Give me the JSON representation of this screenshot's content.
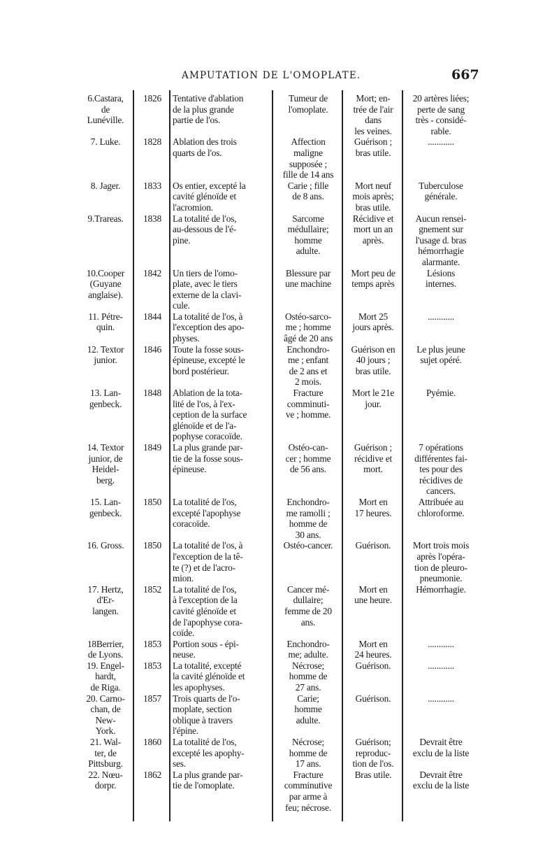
{
  "header": {
    "title": "AMPUTATION DE L'OMOPLATE.",
    "page_number": "667"
  },
  "rows": [
    {
      "case": "6.Castara,\nde\nLunéville.",
      "year": "1826",
      "operation": "Tentative d'ablation\n   de la plus grande\n   partie de l'os.",
      "cause": "Tumeur de\nl'omoplate.",
      "result": "Mort; en-\ntrée de l'air\ndans\nles veines.",
      "remarks": "20 artères liées;\nperte de sang\ntrès - considé-\nrable."
    },
    {
      "case": "7. Luke.",
      "year": "1828",
      "operation": "Ablation des trois\n   quarts de l'os.",
      "cause": "Affection\nmaligne\nsupposée ;\nfille de 14 ans",
      "result": "Guérison ;\nbras utile.",
      "remarks": "............"
    },
    {
      "case": "8. Jager.",
      "year": "1833",
      "operation": "Os entier, excepté la\n   cavité glénoïde et\n   l'acromion.",
      "cause": "Carie ; fille\nde 8 ans.",
      "result": "Mort neuf\nmois après;\nbras utile.",
      "remarks": "Tuberculose\ngénérale."
    },
    {
      "case": "9.Trareas.",
      "year": "1838",
      "operation": "La totalité de l'os,\n   au-dessous de l'é-\n   pine.",
      "cause": "Sarcome\nmédullaire;\nhomme\nadulte.",
      "result": "Récidive et\nmort un an\naprès.",
      "remarks": "Aucun rensei-\ngnement sur\nl'usage d. bras\nhémorrhagie\nalarmante."
    },
    {
      "case": "10.Cooper\n(Guyane\nanglaise).",
      "year": "1842",
      "operation": "Un tiers de l'omo-\n   plate, avec le tiers\n   externe de la clavi-\n   cule.",
      "cause": "Blessure par\nune machine",
      "result": "Mort peu de\ntemps après",
      "remarks": "Lésions\ninternes."
    },
    {
      "case": "11. Pétre-\nquin.",
      "year": "1844",
      "operation": "La totalité de l'os, à\n   l'exception des apo-\n   physes.",
      "cause": "Ostéo-sarco-\nme ; homme\nâgé de 20 ans",
      "result": "Mort 25\njours après.",
      "remarks": "............"
    },
    {
      "case": "12. Textor\njunior.",
      "year": "1846",
      "operation": "Toute la fosse sous-\n   épineuse, excepté le\n   bord postérieur.",
      "cause": "Enchondro-\nme ; enfant\nde 2 ans et\n2 mois.",
      "result": "Guérison en\n40 jours ;\nbras utile.",
      "remarks": "Le plus jeune\nsujet opéré."
    },
    {
      "case": "13. Lan-\ngenbeck.",
      "year": "1848",
      "operation": "Ablation de la tota-\n   lité de l'os, à l'ex-\n   ception de la surface\n   glénoïde et de l'a-\n   pophyse coracoïde.",
      "cause": "Fracture\ncomminuti-\nve ; homme.",
      "result": "Mort le 21e\njour.",
      "remarks": "Pyémie."
    },
    {
      "case": "14. Textor\njunior, de\nHeidel-\nberg.",
      "year": "1849",
      "operation": "La plus grande par-\n   tie de la fosse sous-\n   épineuse.",
      "cause": "Ostéo-can-\ncer ; homme\nde 56 ans.",
      "result": "Guérison ;\nrécidive et\nmort.",
      "remarks": "7 opérations\ndifférentes fai-\ntes pour des\nrécidives de\ncancers."
    },
    {
      "case": "15. Lan-\ngenbeck.",
      "year": "1850",
      "operation": "La totalité de l'os,\n   excepté l'apophyse\n   coracoïde.",
      "cause": "Enchondro-\nme ramolli ;\nhomme de\n30 ans.",
      "result": "Mort en\n17 heures.",
      "remarks": "Attribuée au\nchloroforme."
    },
    {
      "case": "16. Gross.",
      "year": "1850",
      "operation": "La totalité de l'os, à\n   l'exception de la tê-\n   te (?) et de l'acro-\n   mion.",
      "cause": "Ostéo-cancer.",
      "result": "Guérison.",
      "remarks": "Mort trois mois\naprès l'opéra-\ntion de pleuro-\npneumonie."
    },
    {
      "case": "17. Hertz,\nd'Er-\nlangen.",
      "year": "1852",
      "operation": "La totalité de l'os,\n   à l'exception de la\n   cavité glénoïde et\n   de l'apophyse cora-\n   coïde.",
      "cause": "Cancer mé-\ndullaire;\nfemme de 20\nans.",
      "result": "Mort en\nune heure.",
      "remarks": "Hémorrhagie."
    },
    {
      "case": "18Berrier,\nde Lyons.",
      "year": "1853",
      "operation": "Portion sous - épi-\n   neuse.",
      "cause": "Enchondro-\nme; adulte.",
      "result": "Mort en\n24 heures.",
      "remarks": "............"
    },
    {
      "case": "19. Engel-\nhardt,\nde Riga.",
      "year": "1853",
      "operation": "La totalité, excepté\n   la cavité glénoïde et\n   les apophyses.",
      "cause": "Nécrose;\nhomme de\n27 ans.",
      "result": "Guérison.",
      "remarks": "............"
    },
    {
      "case": "20. Carno-\nchan, de\nNew-\nYork.",
      "year": "1857",
      "operation": "Trois quarts de l'o-\n   moplate, section\n   oblique à travers\n   l'épine.",
      "cause": "Carie;\nhomme\nadulte.",
      "result": "Guérison.",
      "remarks": "............"
    },
    {
      "case": "21. Wal-\nter, de\nPittsburg.",
      "year": "1860",
      "operation": "La totalité de l'os,\n   excepté les apophy-\n   ses.",
      "cause": "Nécrose;\nhomme de\n17 ans.",
      "result": "Guérison;\nreproduc-\ntion de l'os.",
      "remarks": "Devrait être\nexclu de la liste"
    },
    {
      "case": "22. Nœu-\ndorpr.",
      "year": "1862",
      "operation": "La plus grande par-\n   tie de l'omoplate.",
      "cause": "Fracture\ncomminutive\npar arme à\nfeu; nécrose.",
      "result": "Bras utile.",
      "remarks": "Devrait être\nexclu de la liste"
    }
  ]
}
